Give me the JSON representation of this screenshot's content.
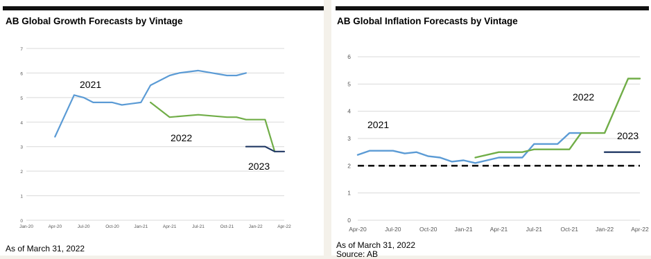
{
  "chart_data": [
    {
      "type": "line",
      "title": "AB Global Growth Forecasts by Vintage",
      "footnote": "As of March 31, 2022",
      "xlabel": "",
      "ylabel": "",
      "ylim": [
        0,
        7
      ],
      "y_ticks": [
        "0",
        "1",
        "2",
        "3",
        "4",
        "5",
        "6",
        "7"
      ],
      "x_ticks": [
        "Jan-20",
        "Apr-20",
        "Jul-20",
        "Oct-20",
        "Jan-21",
        "Apr-21",
        "Jul-21",
        "Oct-21",
        "Jan-22",
        "Apr-22"
      ],
      "grid": true,
      "series": [
        {
          "name": "2021",
          "color": "#5b9bd5",
          "points": [
            [
              "Apr-20",
              3.4
            ],
            [
              "Jun-20",
              5.1
            ],
            [
              "Jul-20",
              5.0
            ],
            [
              "Aug-20",
              4.8
            ],
            [
              "Sep-20",
              4.8
            ],
            [
              "Oct-20",
              4.8
            ],
            [
              "Nov-20",
              4.7
            ],
            [
              "Dec-20",
              4.75
            ],
            [
              "Jan-21",
              4.8
            ],
            [
              "Feb-21",
              5.5
            ],
            [
              "Apr-21",
              5.9
            ],
            [
              "May-21",
              6.0
            ],
            [
              "Jul-21",
              6.1
            ],
            [
              "Oct-21",
              5.9
            ],
            [
              "Nov-21",
              5.9
            ],
            [
              "Dec-21",
              6.0
            ]
          ]
        },
        {
          "name": "2022",
          "color": "#70ad47",
          "points": [
            [
              "Feb-21",
              4.8
            ],
            [
              "Apr-21",
              4.2
            ],
            [
              "Jul-21",
              4.3
            ],
            [
              "Oct-21",
              4.2
            ],
            [
              "Nov-21",
              4.2
            ],
            [
              "Dec-21",
              4.1
            ],
            [
              "Feb-22",
              4.1
            ],
            [
              "Mar-22",
              2.8
            ]
          ]
        },
        {
          "name": "2023",
          "color": "#203864",
          "points": [
            [
              "Dec-21",
              3.0
            ],
            [
              "Feb-22",
              3.0
            ],
            [
              "Mar-22",
              2.8
            ],
            [
              "Apr-22",
              2.8
            ]
          ]
        }
      ]
    },
    {
      "type": "line",
      "title": "AB Global Inflation Forecasts by Vintage",
      "footnote": "As of March 31, 2022",
      "source": "Source: AB",
      "xlabel": "",
      "ylabel": "",
      "ylim": [
        0,
        6
      ],
      "y_ticks": [
        "0",
        "1",
        "2",
        "3",
        "4",
        "5",
        "6"
      ],
      "x_ticks": [
        "Apr-20",
        "Jul-20",
        "Oct-20",
        "Jan-21",
        "Apr-21",
        "Jul-21",
        "Oct-21",
        "Jan-22",
        "Apr-22"
      ],
      "grid": true,
      "reference_line": {
        "value": 2.0,
        "style": "dashed",
        "color": "#111111"
      },
      "series": [
        {
          "name": "2021",
          "color": "#5b9bd5",
          "points": [
            [
              "Apr-20",
              2.4
            ],
            [
              "May-20",
              2.55
            ],
            [
              "Jul-20",
              2.55
            ],
            [
              "Aug-20",
              2.45
            ],
            [
              "Sep-20",
              2.5
            ],
            [
              "Oct-20",
              2.35
            ],
            [
              "Nov-20",
              2.3
            ],
            [
              "Dec-20",
              2.15
            ],
            [
              "Jan-21",
              2.2
            ],
            [
              "Feb-21",
              2.1
            ],
            [
              "Mar-21",
              2.2
            ],
            [
              "Apr-21",
              2.3
            ],
            [
              "Jun-21",
              2.3
            ],
            [
              "Jul-21",
              2.8
            ],
            [
              "Sep-21",
              2.8
            ],
            [
              "Oct-21",
              3.2
            ],
            [
              "Nov-21",
              3.2
            ]
          ]
        },
        {
          "name": "2022",
          "color": "#70ad47",
          "points": [
            [
              "Feb-21",
              2.3
            ],
            [
              "Apr-21",
              2.5
            ],
            [
              "Jun-21",
              2.5
            ],
            [
              "Jul-21",
              2.6
            ],
            [
              "Oct-21",
              2.6
            ],
            [
              "Nov-21",
              3.2
            ],
            [
              "Jan-22",
              3.2
            ],
            [
              "Mar-22",
              5.2
            ],
            [
              "Apr-22",
              5.2
            ]
          ]
        },
        {
          "name": "2023",
          "color": "#203864",
          "points": [
            [
              "Jan-22",
              2.5
            ],
            [
              "Apr-22",
              2.5
            ]
          ]
        }
      ]
    }
  ]
}
